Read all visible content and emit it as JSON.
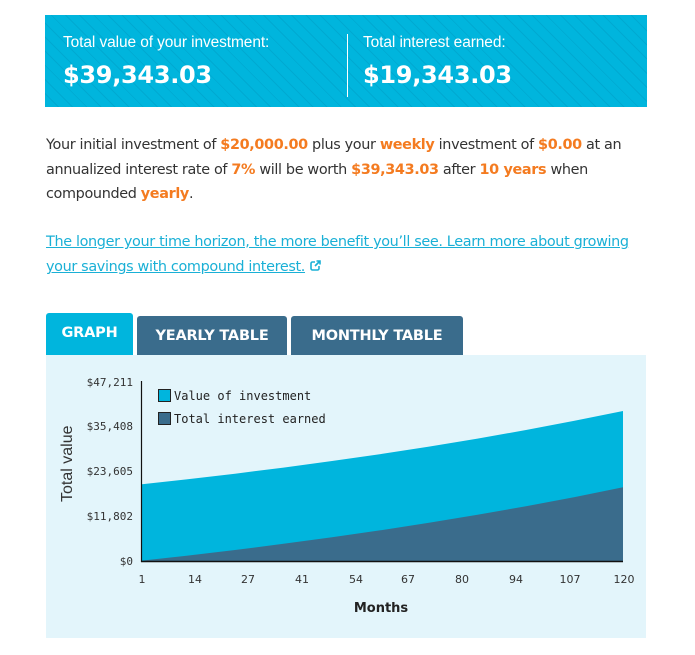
{
  "banner": {
    "total_value_label": "Total value of your investment:",
    "total_value": "$39,343.03",
    "interest_label": "Total interest earned:",
    "interest_value": "$19,343.03",
    "color": "#00b5dd"
  },
  "summary": {
    "t1": "Your initial investment of ",
    "initial": "$20,000.00",
    "t2": " plus your ",
    "frequency": "weekly",
    "t3": " investment of ",
    "contribution": "$0.00",
    "t4": " at an annualized interest rate of ",
    "rate": "7%",
    "t5": " will be worth ",
    "final": "$39,343.03",
    "t6": " after ",
    "years": "10 years",
    "t7": " when compounded ",
    "compounding": "yearly",
    "t8": ".",
    "highlight_color": "#f47b20"
  },
  "learn_link": {
    "text": "The longer your time horizon, the more benefit you’ll see. Learn more about growing your savings with compound interest.",
    "icon": "external-link-icon",
    "color": "#1ab0d6"
  },
  "tabs": [
    {
      "label": "GRAPH",
      "active": true
    },
    {
      "label": "YEARLY TABLE",
      "active": false
    },
    {
      "label": "MONTHLY TABLE",
      "active": false
    }
  ],
  "chart_data": {
    "type": "area",
    "title": "",
    "xlabel": "Months",
    "ylabel": "Total value",
    "x_ticks": [
      "1",
      "14",
      "27",
      "41",
      "54",
      "67",
      "80",
      "94",
      "107",
      "120"
    ],
    "y_ticks": [
      "$0",
      "$11,802",
      "$23,605",
      "$35,408",
      "$47,211"
    ],
    "ylim": [
      0,
      47211
    ],
    "xlim": [
      1,
      120
    ],
    "grid": false,
    "legend_position": "top-left",
    "x": [
      1,
      12,
      24,
      36,
      48,
      60,
      72,
      84,
      96,
      108,
      120
    ],
    "series": [
      {
        "name": "Value of investment",
        "color": "#00b5dd",
        "values": [
          20113,
          21400,
          22898,
          24501,
          26216,
          28051,
          30015,
          32116,
          34364,
          36769,
          39343
        ]
      },
      {
        "name": "Total interest earned",
        "color": "#3a6c8c",
        "values": [
          113,
          1400,
          2898,
          4501,
          6216,
          8051,
          10015,
          12116,
          14364,
          16769,
          19343
        ]
      }
    ]
  }
}
